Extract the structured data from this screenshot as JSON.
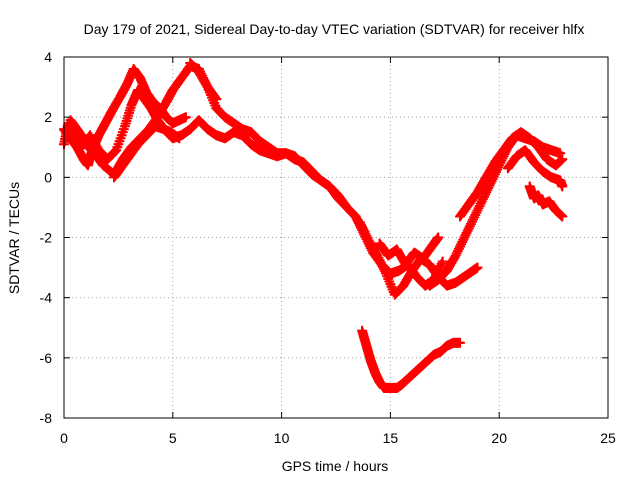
{
  "chart_data": {
    "type": "scatter",
    "title": "Day 179 of 2021, Sidereal Day-to-day VTEC variation (SDTVAR) for receiver hlfx",
    "xlabel": "GPS time / hours",
    "ylabel": "SDTVAR / TECUs",
    "xlim": [
      0,
      25
    ],
    "ylim": [
      -8,
      4
    ],
    "xticks": [
      0,
      5,
      10,
      15,
      20,
      25
    ],
    "xtick_labels": [
      "0",
      "5",
      "10",
      "15",
      "20",
      "25"
    ],
    "yticks": [
      -8,
      -6,
      -4,
      -2,
      0,
      2,
      4
    ],
    "ytick_labels": [
      "-8",
      "-6",
      "-4",
      "-2",
      "0",
      "2",
      "4"
    ],
    "grid": true,
    "marker": "+",
    "color": "#ff0000",
    "series": [
      {
        "name": "track-1",
        "x": [
          0.0,
          0.3,
          0.6,
          0.9,
          1.1,
          1.3,
          1.6,
          1.9,
          2.2,
          2.6,
          2.9,
          3.2,
          3.5,
          3.8,
          4.1,
          4.4,
          4.7,
          5.0,
          5.3,
          5.6
        ],
        "y": [
          1.6,
          1.3,
          1.0,
          0.6,
          0.4,
          0.9,
          1.4,
          1.8,
          2.2,
          2.7,
          3.1,
          3.6,
          3.3,
          2.8,
          2.5,
          2.3,
          2.0,
          1.8,
          1.9,
          2.0
        ]
      },
      {
        "name": "track-2",
        "x": [
          0.0,
          0.2,
          0.5,
          0.8,
          1.2,
          1.6,
          2.0,
          2.4,
          2.8,
          3.1,
          3.4,
          3.7,
          4.0,
          4.3,
          4.6,
          4.9,
          5.3
        ],
        "y": [
          1.1,
          1.8,
          1.4,
          1.0,
          1.4,
          0.9,
          0.6,
          0.9,
          1.7,
          2.4,
          2.9,
          2.6,
          2.3,
          1.9,
          1.6,
          1.5,
          1.3
        ]
      },
      {
        "name": "track-3",
        "x": [
          0.3,
          0.7,
          1.0,
          1.4,
          1.8,
          2.3,
          2.7,
          3.1,
          3.5,
          3.9,
          4.3,
          4.7,
          5.0,
          5.4,
          5.8,
          6.2,
          6.6,
          7.0
        ],
        "y": [
          1.9,
          1.5,
          1.1,
          0.8,
          0.4,
          0.1,
          0.6,
          1.0,
          1.3,
          1.6,
          2.0,
          2.5,
          2.9,
          3.3,
          3.7,
          3.6,
          3.0,
          2.6
        ]
      },
      {
        "name": "track-4",
        "x": [
          2.3,
          2.6,
          3.0,
          3.4,
          3.8,
          4.2,
          4.6,
          5.0,
          5.4,
          5.8,
          6.2,
          6.6,
          7.0,
          7.4,
          7.8,
          8.2,
          8.6,
          9.0,
          9.4,
          9.8,
          10.2,
          10.6,
          11.0,
          11.4,
          11.8,
          12.2,
          12.6,
          13.0,
          13.4,
          13.8
        ],
        "y": [
          0.0,
          0.3,
          0.7,
          1.1,
          1.4,
          1.7,
          1.6,
          1.3,
          1.4,
          1.6,
          1.9,
          1.6,
          1.4,
          1.3,
          1.5,
          1.4,
          1.1,
          0.9,
          0.8,
          0.7,
          0.8,
          0.6,
          0.5,
          0.2,
          -0.1,
          -0.3,
          -0.7,
          -1.0,
          -1.3,
          -1.8
        ]
      },
      {
        "name": "track-5",
        "x": [
          5.8,
          6.2,
          6.6,
          7.0,
          7.4,
          7.8,
          8.2,
          8.6,
          9.0,
          9.4,
          9.8,
          10.2,
          10.6,
          11.0,
          11.4,
          11.8,
          12.2,
          12.6,
          13.0,
          13.4,
          13.8,
          14.2,
          14.6,
          15.0,
          15.4,
          15.8,
          16.2,
          16.6,
          17.0,
          17.4
        ],
        "y": [
          3.8,
          3.5,
          3.0,
          2.3,
          2.0,
          1.8,
          1.6,
          1.5,
          1.2,
          1.0,
          0.8,
          0.8,
          0.7,
          0.4,
          0.1,
          -0.1,
          -0.3,
          -0.6,
          -1.0,
          -1.3,
          -1.9,
          -2.5,
          -2.9,
          -3.2,
          -3.1,
          -2.9,
          -3.3,
          -3.6,
          -3.4,
          -2.8
        ]
      },
      {
        "name": "track-6",
        "x": [
          13.6,
          14.0,
          14.4,
          14.8,
          15.2,
          15.6,
          16.0,
          16.4,
          16.8,
          17.2,
          17.6,
          18.0,
          18.4,
          18.8,
          19.0
        ],
        "y": [
          -1.5,
          -2.1,
          -2.6,
          -3.2,
          -3.9,
          -3.6,
          -3.1,
          -2.7,
          -2.9,
          -3.3,
          -3.6,
          -3.5,
          -3.3,
          -3.1,
          -3.0
        ]
      },
      {
        "name": "track-7",
        "x": [
          14.5,
          14.9,
          15.3,
          15.7,
          16.1,
          16.5,
          16.9,
          17.2
        ],
        "y": [
          -2.2,
          -2.6,
          -2.4,
          -2.9,
          -2.5,
          -2.7,
          -2.3,
          -2.0
        ]
      },
      {
        "name": "track-8",
        "x": [
          16.8,
          17.2,
          17.6,
          18.0,
          18.4,
          18.8,
          19.2,
          19.6,
          20.0,
          20.4,
          20.8,
          21.2,
          21.6,
          22.0,
          22.4,
          22.8
        ],
        "y": [
          -3.6,
          -3.4,
          -3.1,
          -2.6,
          -2.0,
          -1.4,
          -0.8,
          -0.2,
          0.4,
          1.0,
          1.4,
          1.3,
          1.2,
          1.0,
          0.9,
          0.8
        ]
      },
      {
        "name": "track-9",
        "x": [
          18.2,
          18.6,
          19.0,
          19.4,
          19.8,
          20.2,
          20.6,
          21.0,
          21.4,
          21.8,
          22.2,
          22.6,
          22.9
        ],
        "y": [
          -1.3,
          -0.9,
          -0.5,
          0.0,
          0.5,
          0.9,
          1.3,
          1.5,
          1.3,
          1.0,
          0.6,
          0.4,
          0.6
        ]
      },
      {
        "name": "track-10",
        "x": [
          20.4,
          20.8,
          21.2,
          21.6,
          22.0,
          22.4,
          22.8,
          22.9
        ],
        "y": [
          0.3,
          0.7,
          0.9,
          0.5,
          0.2,
          0.0,
          -0.1,
          -0.3
        ]
      },
      {
        "name": "track-11",
        "x": [
          21.4,
          21.6,
          21.8,
          22.0,
          22.3,
          22.6,
          22.9
        ],
        "y": [
          -0.3,
          -0.7,
          -0.6,
          -0.9,
          -0.8,
          -1.1,
          -1.3
        ]
      },
      {
        "name": "track-12",
        "x": [
          13.7,
          13.9,
          14.1,
          14.3,
          14.5,
          14.7,
          14.9,
          15.1,
          15.3,
          15.5,
          15.8,
          16.1,
          16.4,
          16.7,
          17.0,
          17.3,
          17.6,
          17.9,
          18.2
        ],
        "y": [
          -5.1,
          -5.6,
          -6.1,
          -6.5,
          -6.8,
          -7.0,
          -7.0,
          -7.0,
          -7.0,
          -6.9,
          -6.7,
          -6.5,
          -6.3,
          -6.1,
          -5.9,
          -5.8,
          -5.6,
          -5.5,
          -5.5
        ]
      }
    ]
  }
}
